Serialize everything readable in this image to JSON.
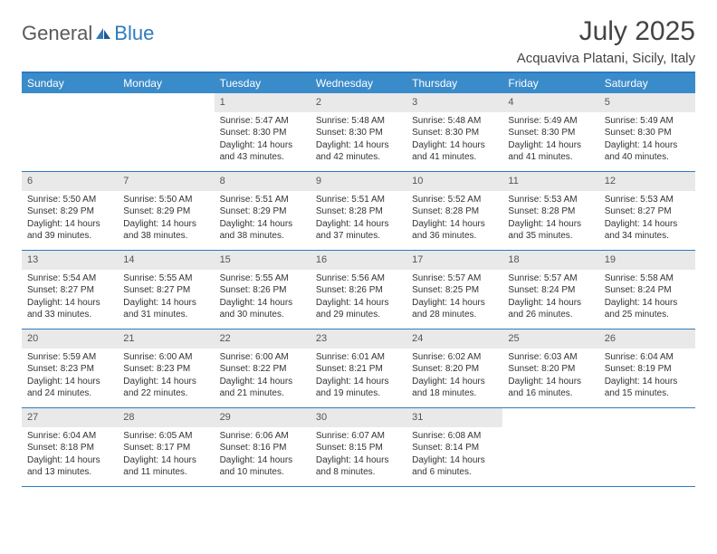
{
  "logo": {
    "text1": "General",
    "text2": "Blue"
  },
  "title": "July 2025",
  "location": "Acquaviva Platani, Sicily, Italy",
  "colors": {
    "header_bar": "#3a8bca",
    "border": "#2f7abf",
    "daynum_bg": "#e9e9e9",
    "text": "#333333",
    "logo_gray": "#5a5a5a",
    "logo_blue": "#2f7abf"
  },
  "dow": [
    "Sunday",
    "Monday",
    "Tuesday",
    "Wednesday",
    "Thursday",
    "Friday",
    "Saturday"
  ],
  "weeks": [
    [
      null,
      null,
      {
        "n": "1",
        "sr": "5:47 AM",
        "ss": "8:30 PM",
        "dl": "14 hours and 43 minutes."
      },
      {
        "n": "2",
        "sr": "5:48 AM",
        "ss": "8:30 PM",
        "dl": "14 hours and 42 minutes."
      },
      {
        "n": "3",
        "sr": "5:48 AM",
        "ss": "8:30 PM",
        "dl": "14 hours and 41 minutes."
      },
      {
        "n": "4",
        "sr": "5:49 AM",
        "ss": "8:30 PM",
        "dl": "14 hours and 41 minutes."
      },
      {
        "n": "5",
        "sr": "5:49 AM",
        "ss": "8:30 PM",
        "dl": "14 hours and 40 minutes."
      }
    ],
    [
      {
        "n": "6",
        "sr": "5:50 AM",
        "ss": "8:29 PM",
        "dl": "14 hours and 39 minutes."
      },
      {
        "n": "7",
        "sr": "5:50 AM",
        "ss": "8:29 PM",
        "dl": "14 hours and 38 minutes."
      },
      {
        "n": "8",
        "sr": "5:51 AM",
        "ss": "8:29 PM",
        "dl": "14 hours and 38 minutes."
      },
      {
        "n": "9",
        "sr": "5:51 AM",
        "ss": "8:28 PM",
        "dl": "14 hours and 37 minutes."
      },
      {
        "n": "10",
        "sr": "5:52 AM",
        "ss": "8:28 PM",
        "dl": "14 hours and 36 minutes."
      },
      {
        "n": "11",
        "sr": "5:53 AM",
        "ss": "8:28 PM",
        "dl": "14 hours and 35 minutes."
      },
      {
        "n": "12",
        "sr": "5:53 AM",
        "ss": "8:27 PM",
        "dl": "14 hours and 34 minutes."
      }
    ],
    [
      {
        "n": "13",
        "sr": "5:54 AM",
        "ss": "8:27 PM",
        "dl": "14 hours and 33 minutes."
      },
      {
        "n": "14",
        "sr": "5:55 AM",
        "ss": "8:27 PM",
        "dl": "14 hours and 31 minutes."
      },
      {
        "n": "15",
        "sr": "5:55 AM",
        "ss": "8:26 PM",
        "dl": "14 hours and 30 minutes."
      },
      {
        "n": "16",
        "sr": "5:56 AM",
        "ss": "8:26 PM",
        "dl": "14 hours and 29 minutes."
      },
      {
        "n": "17",
        "sr": "5:57 AM",
        "ss": "8:25 PM",
        "dl": "14 hours and 28 minutes."
      },
      {
        "n": "18",
        "sr": "5:57 AM",
        "ss": "8:24 PM",
        "dl": "14 hours and 26 minutes."
      },
      {
        "n": "19",
        "sr": "5:58 AM",
        "ss": "8:24 PM",
        "dl": "14 hours and 25 minutes."
      }
    ],
    [
      {
        "n": "20",
        "sr": "5:59 AM",
        "ss": "8:23 PM",
        "dl": "14 hours and 24 minutes."
      },
      {
        "n": "21",
        "sr": "6:00 AM",
        "ss": "8:23 PM",
        "dl": "14 hours and 22 minutes."
      },
      {
        "n": "22",
        "sr": "6:00 AM",
        "ss": "8:22 PM",
        "dl": "14 hours and 21 minutes."
      },
      {
        "n": "23",
        "sr": "6:01 AM",
        "ss": "8:21 PM",
        "dl": "14 hours and 19 minutes."
      },
      {
        "n": "24",
        "sr": "6:02 AM",
        "ss": "8:20 PM",
        "dl": "14 hours and 18 minutes."
      },
      {
        "n": "25",
        "sr": "6:03 AM",
        "ss": "8:20 PM",
        "dl": "14 hours and 16 minutes."
      },
      {
        "n": "26",
        "sr": "6:04 AM",
        "ss": "8:19 PM",
        "dl": "14 hours and 15 minutes."
      }
    ],
    [
      {
        "n": "27",
        "sr": "6:04 AM",
        "ss": "8:18 PM",
        "dl": "14 hours and 13 minutes."
      },
      {
        "n": "28",
        "sr": "6:05 AM",
        "ss": "8:17 PM",
        "dl": "14 hours and 11 minutes."
      },
      {
        "n": "29",
        "sr": "6:06 AM",
        "ss": "8:16 PM",
        "dl": "14 hours and 10 minutes."
      },
      {
        "n": "30",
        "sr": "6:07 AM",
        "ss": "8:15 PM",
        "dl": "14 hours and 8 minutes."
      },
      {
        "n": "31",
        "sr": "6:08 AM",
        "ss": "8:14 PM",
        "dl": "14 hours and 6 minutes."
      },
      null,
      null
    ]
  ],
  "labels": {
    "sunrise": "Sunrise:",
    "sunset": "Sunset:",
    "daylight": "Daylight:"
  }
}
